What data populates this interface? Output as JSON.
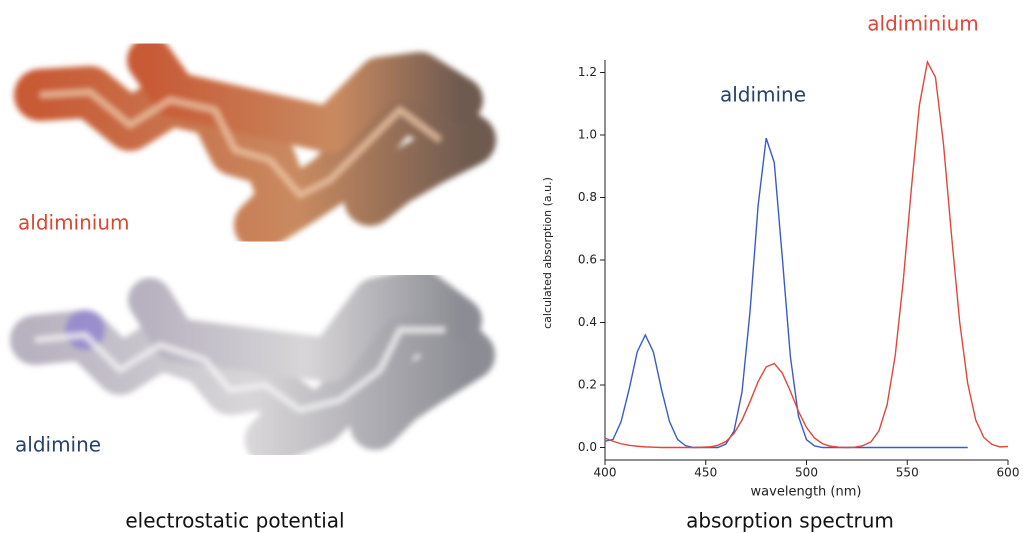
{
  "left_panel": {
    "labels": [
      "aldiminium",
      "aldimine"
    ],
    "caption": "electrostatic potential"
  },
  "chart_data": {
    "type": "line",
    "caption": "absorption spectrum",
    "xlabel": "wavelength (nm)",
    "ylabel": "calculated absorption (a.u.)",
    "x": [
      400,
      404,
      408,
      412,
      416,
      420,
      424,
      428,
      432,
      436,
      440,
      444,
      448,
      452,
      456,
      460,
      464,
      468,
      472,
      476,
      480,
      484,
      488,
      492,
      496,
      500,
      504,
      508,
      512,
      516,
      520,
      524,
      528,
      532,
      536,
      540,
      544,
      548,
      552,
      556,
      560,
      564,
      568,
      572,
      576,
      580,
      584,
      588,
      592,
      596,
      600
    ],
    "series": [
      {
        "name": "aldimine",
        "color": "#3a5bc7",
        "values": [
          0.02,
          0.026,
          0.083,
          0.187,
          0.306,
          0.36,
          0.306,
          0.187,
          0.083,
          0.026,
          0.006,
          0,
          0,
          0,
          0,
          0.011,
          0.052,
          0.178,
          0.437,
          0.775,
          0.99,
          0.912,
          0.607,
          0.291,
          0.1,
          0.025,
          0.005,
          0,
          0,
          0,
          0,
          0,
          0,
          0,
          0,
          0,
          0,
          0,
          0,
          0,
          0,
          0,
          0,
          0,
          0,
          0,
          null,
          null,
          null,
          null,
          null
        ]
      },
      {
        "name": "aldiminium",
        "color": "#e0473a",
        "values": [
          0.03,
          0.02,
          0.012,
          0.007,
          0.004,
          0.002,
          0.001,
          0,
          0,
          0,
          0,
          0,
          0.001,
          0.002,
          0.007,
          0.019,
          0.045,
          0.088,
          0.147,
          0.211,
          0.258,
          0.269,
          0.238,
          0.18,
          0.116,
          0.064,
          0.03,
          0.012,
          0.004,
          0.001,
          0,
          0.001,
          0.006,
          0.018,
          0.054,
          0.137,
          0.293,
          0.532,
          0.826,
          1.094,
          1.234,
          1.185,
          0.97,
          0.677,
          0.403,
          0.205,
          0.088,
          0.032,
          0.01,
          0.002,
          0.003
        ]
      }
    ],
    "xlim": [
      400,
      600
    ],
    "xticks": [
      400,
      450,
      500,
      550,
      600
    ],
    "ylim": [
      -0.04,
      1.24
    ],
    "yticks": [
      {
        "value": 0,
        "label": "0.0"
      },
      0.2,
      0.4,
      0.6,
      0.8,
      {
        "value": 1,
        "label": "1.0"
      },
      1.2
    ]
  }
}
